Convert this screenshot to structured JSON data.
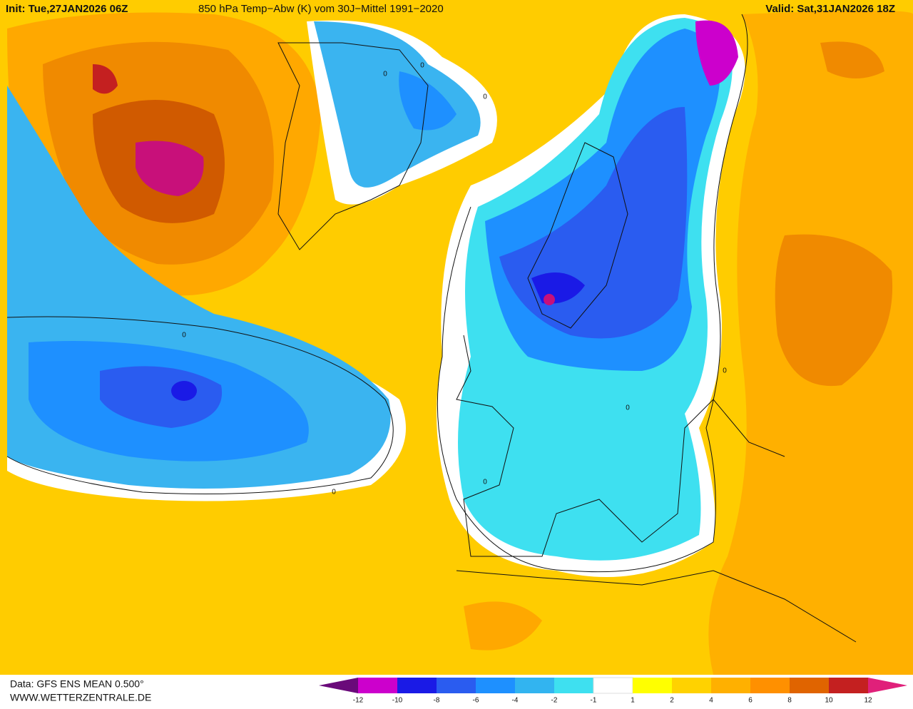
{
  "header": {
    "init": "Init: Tue,27JAN2026 06Z",
    "title": "850 hPa Temp−Abw (K) vom 30J−Mittel 1991−2020",
    "valid": "Valid: Sat,31JAN2026 18Z"
  },
  "footer": {
    "data": "Data: GFS ENS MEAN 0.500°",
    "source": "WWW.WETTERZENTRALE.DE"
  },
  "colorbar": {
    "ticks": [
      -12,
      -10,
      -8,
      -6,
      -4,
      -2,
      -1,
      1,
      2,
      4,
      6,
      8,
      10,
      12
    ],
    "colors": [
      "#6a0a7a",
      "#cc00cc",
      "#1a1ae6",
      "#2a5cf0",
      "#1e90ff",
      "#32b4f0",
      "#3ee0f0",
      "#ffffff",
      "#ffff00",
      "#ffd200",
      "#ffb000",
      "#ff9000",
      "#e06400",
      "#c42020",
      "#e0207a"
    ]
  },
  "contour_labels": [
    0,
    0,
    0,
    0,
    0,
    0,
    0,
    0
  ]
}
